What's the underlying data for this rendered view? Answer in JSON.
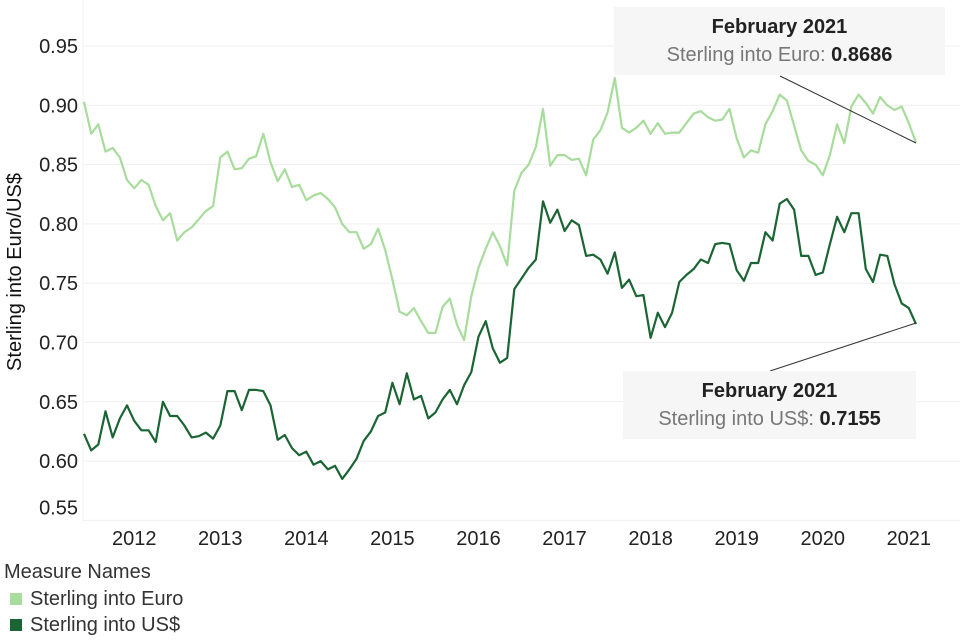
{
  "chart_data": {
    "type": "line",
    "ylabel": "Sterling into Euro/US$",
    "xlabel": "",
    "ylim": [
      0.55,
      0.96
    ],
    "yticks": [
      "0.55",
      "0.60",
      "0.65",
      "0.70",
      "0.75",
      "0.80",
      "0.85",
      "0.90",
      "0.95"
    ],
    "xticks": [
      "2012",
      "2013",
      "2014",
      "2015",
      "2016",
      "2017",
      "2018",
      "2019",
      "2020",
      "2021"
    ],
    "x_start": "2011-06",
    "x_end": "2021-02",
    "x_frequency": "monthly",
    "grid": true,
    "legend": {
      "title": "Measure Names",
      "placement": "bottom-left"
    },
    "series": [
      {
        "name": "Sterling into Euro",
        "color": "#a8dc9c",
        "values": [
          0.903,
          0.876,
          0.884,
          0.861,
          0.864,
          0.856,
          0.837,
          0.83,
          0.837,
          0.833,
          0.815,
          0.803,
          0.809,
          0.786,
          0.793,
          0.797,
          0.804,
          0.811,
          0.815,
          0.856,
          0.861,
          0.846,
          0.847,
          0.855,
          0.857,
          0.876,
          0.852,
          0.836,
          0.846,
          0.831,
          0.833,
          0.82,
          0.824,
          0.826,
          0.821,
          0.814,
          0.8,
          0.793,
          0.793,
          0.779,
          0.783,
          0.796,
          0.778,
          0.753,
          0.726,
          0.723,
          0.729,
          0.718,
          0.708,
          0.708,
          0.73,
          0.737,
          0.715,
          0.702,
          0.739,
          0.763,
          0.779,
          0.793,
          0.781,
          0.765,
          0.828,
          0.843,
          0.85,
          0.865,
          0.897,
          0.849,
          0.858,
          0.858,
          0.854,
          0.855,
          0.841,
          0.871,
          0.879,
          0.894,
          0.923,
          0.881,
          0.877,
          0.881,
          0.887,
          0.876,
          0.885,
          0.876,
          0.877,
          0.877,
          0.885,
          0.893,
          0.895,
          0.89,
          0.887,
          0.888,
          0.897,
          0.872,
          0.856,
          0.862,
          0.86,
          0.884,
          0.895,
          0.909,
          0.904,
          0.883,
          0.862,
          0.853,
          0.85,
          0.841,
          0.858,
          0.884,
          0.868,
          0.899,
          0.909,
          0.902,
          0.893,
          0.907,
          0.9,
          0.896,
          0.899,
          0.885,
          0.8686
        ]
      },
      {
        "name": "Sterling into US$",
        "color": "#1b6433",
        "values": [
          0.623,
          0.609,
          0.614,
          0.642,
          0.62,
          0.636,
          0.647,
          0.634,
          0.626,
          0.626,
          0.616,
          0.65,
          0.638,
          0.638,
          0.63,
          0.62,
          0.621,
          0.624,
          0.619,
          0.63,
          0.659,
          0.659,
          0.643,
          0.66,
          0.66,
          0.659,
          0.647,
          0.618,
          0.622,
          0.611,
          0.605,
          0.608,
          0.597,
          0.6,
          0.593,
          0.596,
          0.585,
          0.593,
          0.602,
          0.617,
          0.625,
          0.638,
          0.641,
          0.666,
          0.648,
          0.674,
          0.652,
          0.655,
          0.636,
          0.641,
          0.652,
          0.66,
          0.648,
          0.664,
          0.675,
          0.705,
          0.718,
          0.695,
          0.683,
          0.687,
          0.745,
          0.754,
          0.763,
          0.77,
          0.819,
          0.801,
          0.812,
          0.794,
          0.803,
          0.799,
          0.773,
          0.774,
          0.77,
          0.758,
          0.776,
          0.746,
          0.753,
          0.739,
          0.74,
          0.704,
          0.725,
          0.713,
          0.725,
          0.751,
          0.757,
          0.762,
          0.77,
          0.767,
          0.783,
          0.784,
          0.783,
          0.761,
          0.752,
          0.767,
          0.767,
          0.793,
          0.786,
          0.817,
          0.821,
          0.812,
          0.773,
          0.773,
          0.757,
          0.759,
          0.783,
          0.806,
          0.793,
          0.809,
          0.809,
          0.762,
          0.751,
          0.774,
          0.773,
          0.749,
          0.733,
          0.729,
          0.7155
        ]
      }
    ],
    "annotations": [
      {
        "title": "February 2021",
        "label": "Sterling into Euro: ",
        "value": "0.8686"
      },
      {
        "title": "February 2021",
        "label": "Sterling into US$: ",
        "value": "0.7155"
      }
    ]
  }
}
